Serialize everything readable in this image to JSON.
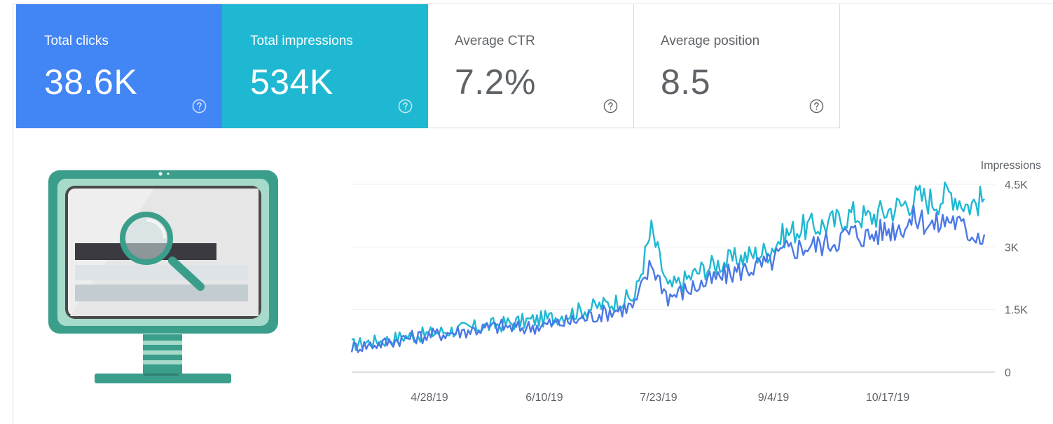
{
  "cards": [
    {
      "label": "Total clicks",
      "value": "38.6K",
      "color": "#4285f4"
    },
    {
      "label": "Total impressions",
      "value": "534K",
      "color": "#1fb8d2"
    },
    {
      "label": "Average CTR",
      "value": "7.2%"
    },
    {
      "label": "Average position",
      "value": "8.5"
    }
  ],
  "icons": {
    "help": "help-circle-icon",
    "illustration": "monitor-magnifier-icon"
  },
  "chart_data": {
    "type": "line",
    "x_tick_labels": [
      "4/28/19",
      "6/10/19",
      "7/23/19",
      "9/4/19",
      "10/17/19"
    ],
    "y_axis_title": "Impressions",
    "y_tick_labels": [
      "4.5K",
      "3K",
      "1.5K",
      "0"
    ],
    "ylim": [
      0,
      4500
    ],
    "grid": true,
    "series": [
      {
        "color": "#1fb8d2",
        "values": [
          650,
          720,
          760,
          850,
          880,
          950,
          1000,
          1050,
          1100,
          1150,
          1200,
          1250,
          1300,
          1400,
          1500,
          1600,
          1700,
          1800,
          3400,
          2000,
          2200,
          2450,
          2600,
          2700,
          2800,
          2900,
          3300,
          3450,
          3500,
          3600,
          3800,
          3700,
          3850,
          4000,
          4200,
          4100,
          4300,
          4000,
          4150
        ]
      },
      {
        "color": "#4a78e6",
        "values": [
          600,
          650,
          700,
          800,
          850,
          900,
          950,
          1000,
          1050,
          1100,
          1050,
          1100,
          1150,
          1200,
          1300,
          1400,
          1500,
          1600,
          2600,
          1800,
          1950,
          2100,
          2250,
          2400,
          2500,
          2600,
          2900,
          3000,
          3050,
          3150,
          3350,
          3250,
          3400,
          3500,
          3700,
          3500,
          3700,
          3350,
          3300
        ]
      }
    ]
  }
}
